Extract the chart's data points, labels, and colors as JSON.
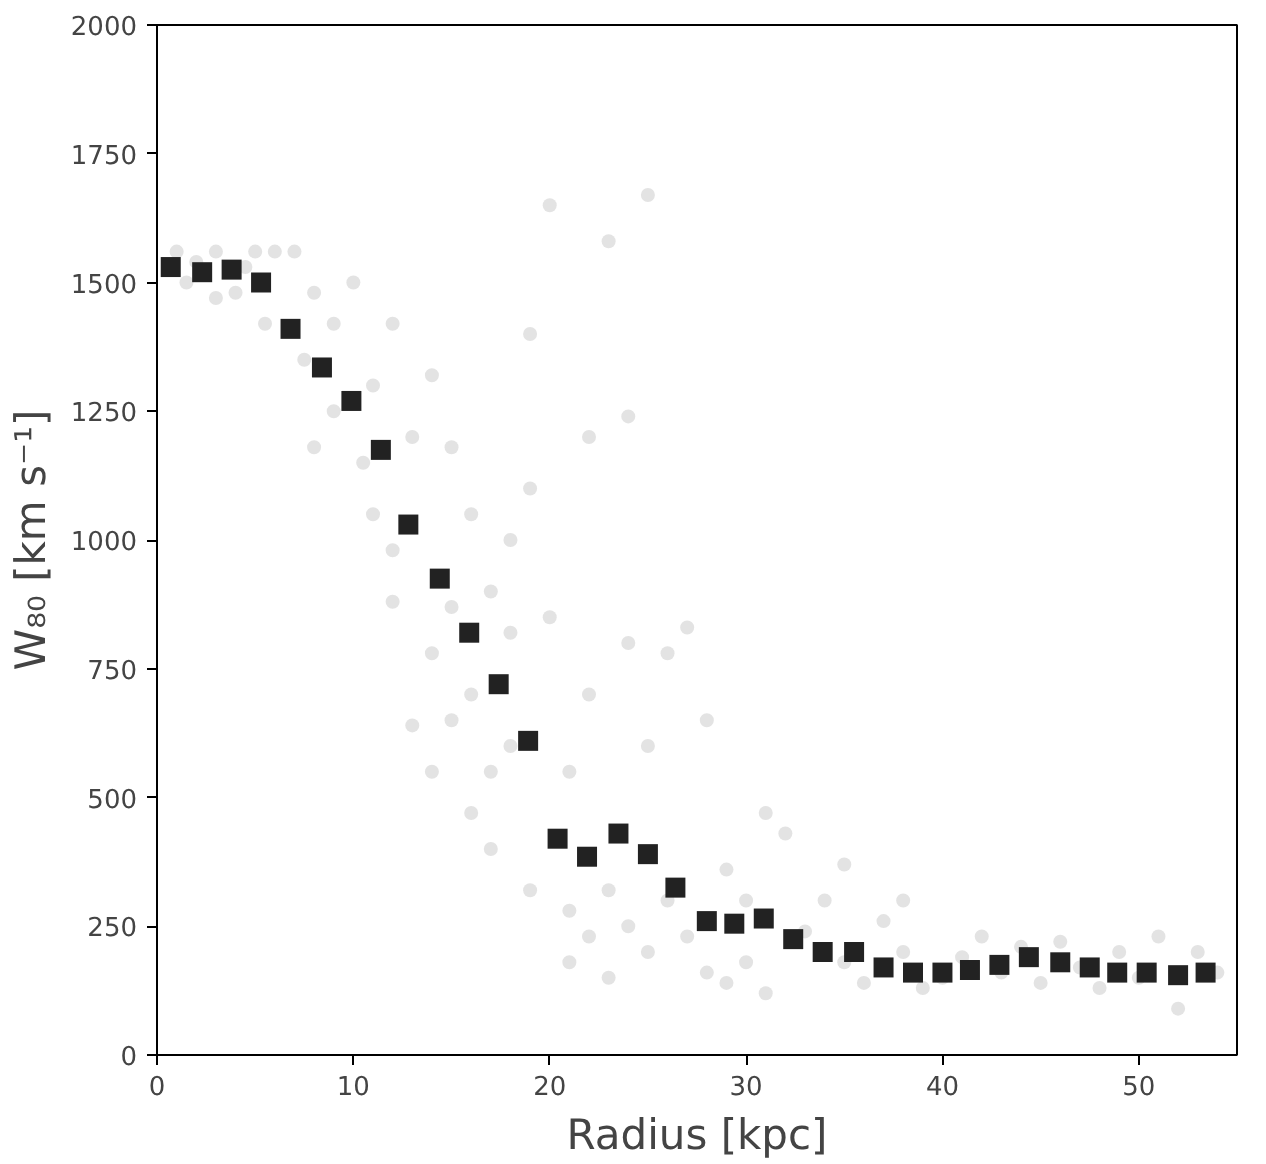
{
  "chart_data": {
    "type": "scatter",
    "xlabel": "Radius [kpc]",
    "ylabel": "W₈₀ [km s⁻¹]",
    "xlim": [
      0,
      55
    ],
    "ylim": [
      0,
      2000
    ],
    "xticks": [
      0,
      10,
      20,
      30,
      40,
      50
    ],
    "yticks": [
      0,
      250,
      500,
      750,
      1000,
      1250,
      1500,
      1750,
      2000
    ],
    "grid": false,
    "series": [
      {
        "color": "#c8c8c8",
        "marker": "circle",
        "x": [
          1,
          2,
          3,
          4,
          5,
          5.5,
          6,
          3,
          1.5,
          4.5,
          7,
          8,
          9,
          10,
          11,
          7.5,
          12,
          9,
          10.5,
          11,
          8,
          12,
          12,
          13,
          14,
          15,
          16,
          17,
          18,
          19,
          14,
          15,
          16,
          13,
          18,
          17,
          20,
          19,
          18,
          16,
          17,
          19,
          20,
          14,
          15,
          21,
          22,
          23,
          24,
          25,
          21,
          22,
          23,
          24,
          25,
          26,
          27,
          28,
          26,
          27,
          28,
          29,
          30,
          22,
          25,
          29,
          30,
          24,
          21,
          23,
          31,
          32,
          33,
          34,
          35,
          36,
          37,
          38,
          39,
          40,
          41,
          42,
          43,
          44,
          45,
          46,
          47,
          48,
          49,
          50,
          51,
          52,
          53,
          54,
          31,
          35,
          38
        ],
        "values": [
          1560,
          1540,
          1560,
          1480,
          1560,
          1420,
          1560,
          1470,
          1500,
          1530,
          1560,
          1480,
          1420,
          1500,
          1300,
          1350,
          1420,
          1250,
          1150,
          1050,
          1180,
          980,
          880,
          1200,
          1320,
          1180,
          1050,
          900,
          1000,
          1100,
          780,
          650,
          700,
          640,
          600,
          550,
          1650,
          1400,
          820,
          470,
          400,
          320,
          850,
          550,
          870,
          280,
          1200,
          1580,
          1240,
          1670,
          550,
          700,
          320,
          250,
          200,
          780,
          830,
          650,
          300,
          230,
          160,
          140,
          180,
          230,
          600,
          360,
          300,
          800,
          180,
          150,
          120,
          430,
          240,
          300,
          180,
          140,
          260,
          200,
          130,
          150,
          190,
          230,
          160,
          210,
          140,
          220,
          170,
          130,
          200,
          150,
          230,
          90,
          200,
          160,
          470,
          370,
          300
        ]
      },
      {
        "color": "#222222",
        "marker": "square",
        "x": [
          0.7,
          2.3,
          3.8,
          5.3,
          6.8,
          8.4,
          9.9,
          11.4,
          12.8,
          14.4,
          15.9,
          17.4,
          18.9,
          20.4,
          21.9,
          23.5,
          25.0,
          26.4,
          28.0,
          29.4,
          30.9,
          32.4,
          33.9,
          35.5,
          37.0,
          38.5,
          40.0,
          41.4,
          42.9,
          44.4,
          46.0,
          47.5,
          48.9,
          50.4,
          52.0,
          53.4
        ],
        "values": [
          1530,
          1520,
          1525,
          1500,
          1410,
          1335,
          1270,
          1175,
          1030,
          925,
          820,
          720,
          610,
          420,
          385,
          430,
          390,
          325,
          260,
          255,
          265,
          225,
          200,
          200,
          170,
          160,
          160,
          165,
          175,
          190,
          180,
          170,
          160,
          160,
          155,
          160
        ]
      }
    ]
  }
}
